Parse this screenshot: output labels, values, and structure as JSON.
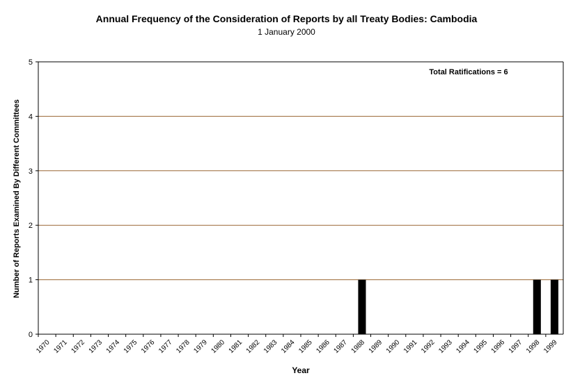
{
  "chart_data": {
    "type": "bar",
    "title": "Annual Frequency of the Consideration of Reports by all Treaty Bodies: Cambodia",
    "subtitle": "1 January 2000",
    "xlabel": "Year",
    "ylabel": "Number of Reports Examined By Different Committees",
    "ylim": [
      0,
      5
    ],
    "yticks": [
      "0",
      "1",
      "2",
      "3",
      "4",
      "5"
    ],
    "grid": true,
    "annotation": "Total Ratifications = 6",
    "categories": [
      "1970",
      "1971",
      "1972",
      "1973",
      "1974",
      "1975",
      "1976",
      "1977",
      "1978",
      "1979",
      "1980",
      "1981",
      "1982",
      "1983",
      "1984",
      "1985",
      "1986",
      "1987",
      "1988",
      "1989",
      "1990",
      "1991",
      "1992",
      "1993",
      "1994",
      "1995",
      "1996",
      "1997",
      "1998",
      "1999"
    ],
    "values": [
      0,
      0,
      0,
      0,
      0,
      0,
      0,
      0,
      0,
      0,
      0,
      0,
      0,
      0,
      0,
      0,
      0,
      0,
      1,
      0,
      0,
      0,
      0,
      0,
      0,
      0,
      0,
      0,
      1,
      1
    ],
    "colors": {
      "bar": "#000000",
      "gridline": "#996633",
      "axis": "#000000"
    }
  }
}
